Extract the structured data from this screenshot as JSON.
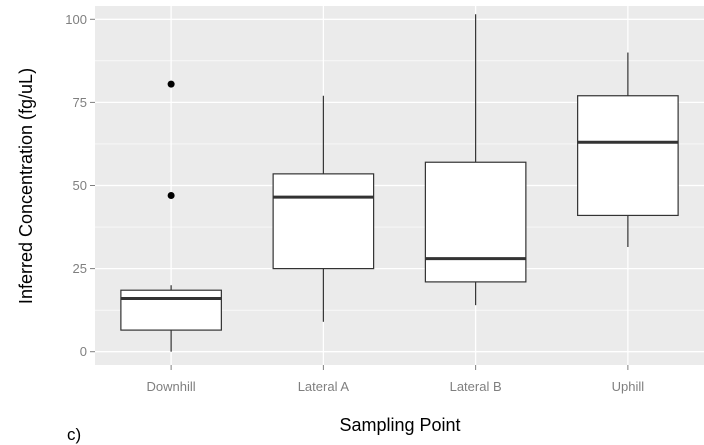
{
  "panel_label": "c)",
  "chart_data": {
    "type": "boxplot",
    "title": "",
    "xlabel": "Sampling Point",
    "ylabel": "Inferred Concentration (fg/uL)",
    "ylim": [
      -4,
      104
    ],
    "yticks": [
      0,
      25,
      50,
      75,
      100
    ],
    "categories": [
      "Downhill",
      "Lateral A",
      "Lateral B",
      "Uphill"
    ],
    "boxes": [
      {
        "category": "Downhill",
        "whisker_low": 0,
        "q1": 6.5,
        "median": 16,
        "q3": 18.5,
        "whisker_high": 20,
        "outliers": [
          47,
          80.5
        ]
      },
      {
        "category": "Lateral A",
        "whisker_low": 9,
        "q1": 25,
        "median": 46.5,
        "q3": 53.5,
        "whisker_high": 77,
        "outliers": []
      },
      {
        "category": "Lateral B",
        "whisker_low": 14,
        "q1": 21,
        "median": 28,
        "q3": 57,
        "whisker_high": 101.5,
        "outliers": []
      },
      {
        "category": "Uphill",
        "whisker_low": 31.5,
        "q1": 41,
        "median": 63,
        "q3": 77,
        "whisker_high": 90,
        "outliers": []
      }
    ],
    "grid": true,
    "panel_background": "#ebebeb",
    "grid_color": "#ffffff",
    "box_fill": "#ffffff",
    "box_stroke": "#333333",
    "outlier_color": "#000000"
  }
}
